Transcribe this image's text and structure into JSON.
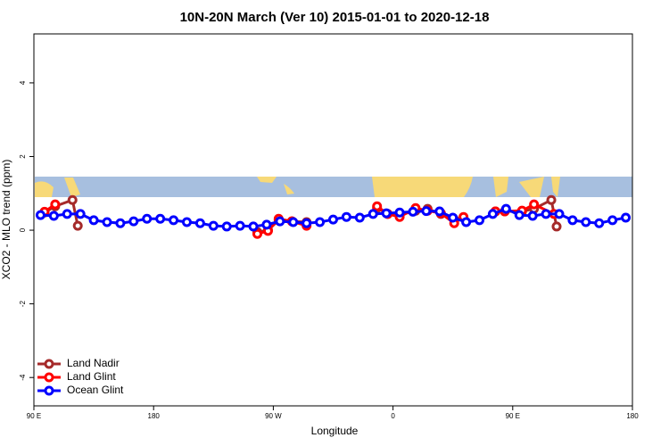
{
  "chart_data": {
    "type": "line",
    "title": "10N-20N March (Ver 10)   2015-01-01 to 2020-12-18",
    "x_label": "Longitude",
    "y_label": "XCO2 - MLO trend (ppm)",
    "xlim": [
      90,
      540
    ],
    "xticks": [
      {
        "value": 90,
        "label": "90 E"
      },
      180,
      {
        "value": 270,
        "label": "90 W"
      },
      {
        "value": 360,
        "label": "0"
      },
      {
        "value": 450,
        "label": "90 E"
      },
      {
        "value": 540,
        "label": "180"
      }
    ],
    "ylim": [
      -4.77,
      5.33
    ],
    "yticks": [
      -4,
      -2,
      0,
      2,
      4
    ],
    "legend": "bottom-left",
    "series": [
      {
        "name": "Land Nadir",
        "color": "#a52a2a",
        "x": [
          98,
          106,
          119,
          123,
          200,
          258,
          266,
          274,
          284,
          295,
          320,
          348,
          356,
          365,
          377,
          386,
          396,
          406,
          425,
          437,
          444,
          457,
          466,
          479,
          483
        ],
        "values": [
          0.48,
          0.65,
          0.82,
          0.12,
          null,
          -0.05,
          0,
          0.27,
          0.24,
          0.22,
          null,
          0.6,
          0.44,
          0.41,
          0.53,
          0.58,
          0.44,
          0.29,
          null,
          0.51,
          0.51,
          0.51,
          0.58,
          0.82,
          0.1
        ]
      },
      {
        "name": "Land Glint",
        "color": "#ff0000",
        "x": [
          98,
          106,
          200,
          258,
          266,
          274,
          284,
          295,
          320,
          348,
          356,
          365,
          377,
          386,
          396,
          406,
          413,
          425,
          437,
          444,
          457,
          466,
          481
        ],
        "values": [
          0.5,
          0.7,
          null,
          -0.1,
          -0.02,
          0.31,
          0.24,
          0.12,
          null,
          0.65,
          0.44,
          0.36,
          0.6,
          0.53,
          0.46,
          0.19,
          0.36,
          null,
          0.51,
          0.51,
          0.53,
          0.7,
          0.44
        ]
      },
      {
        "name": "Ocean Glint",
        "color": "#0000ff",
        "x": [
          95,
          105,
          115,
          125,
          135,
          145,
          155,
          165,
          175,
          185,
          195,
          205,
          215,
          225,
          235,
          245,
          255,
          265,
          275,
          285,
          295,
          305,
          315,
          325,
          335,
          345,
          355,
          365,
          375,
          385,
          395,
          405,
          415,
          425,
          435,
          445,
          455,
          465,
          475,
          485,
          495,
          505,
          515,
          525,
          535
        ],
        "values": [
          0.41,
          0.39,
          0.44,
          0.44,
          0.27,
          0.22,
          0.19,
          0.24,
          0.31,
          0.31,
          0.27,
          0.22,
          0.19,
          0.12,
          0.1,
          0.12,
          0.1,
          0.15,
          0.24,
          0.22,
          0.19,
          0.22,
          0.29,
          0.36,
          0.34,
          0.44,
          0.46,
          0.48,
          0.5,
          0.52,
          0.51,
          0.34,
          0.22,
          0.27,
          0.44,
          0.58,
          0.41,
          0.39,
          0.44,
          0.44,
          0.27,
          0.22,
          0.19,
          0.27,
          0.34
        ]
      }
    ]
  }
}
